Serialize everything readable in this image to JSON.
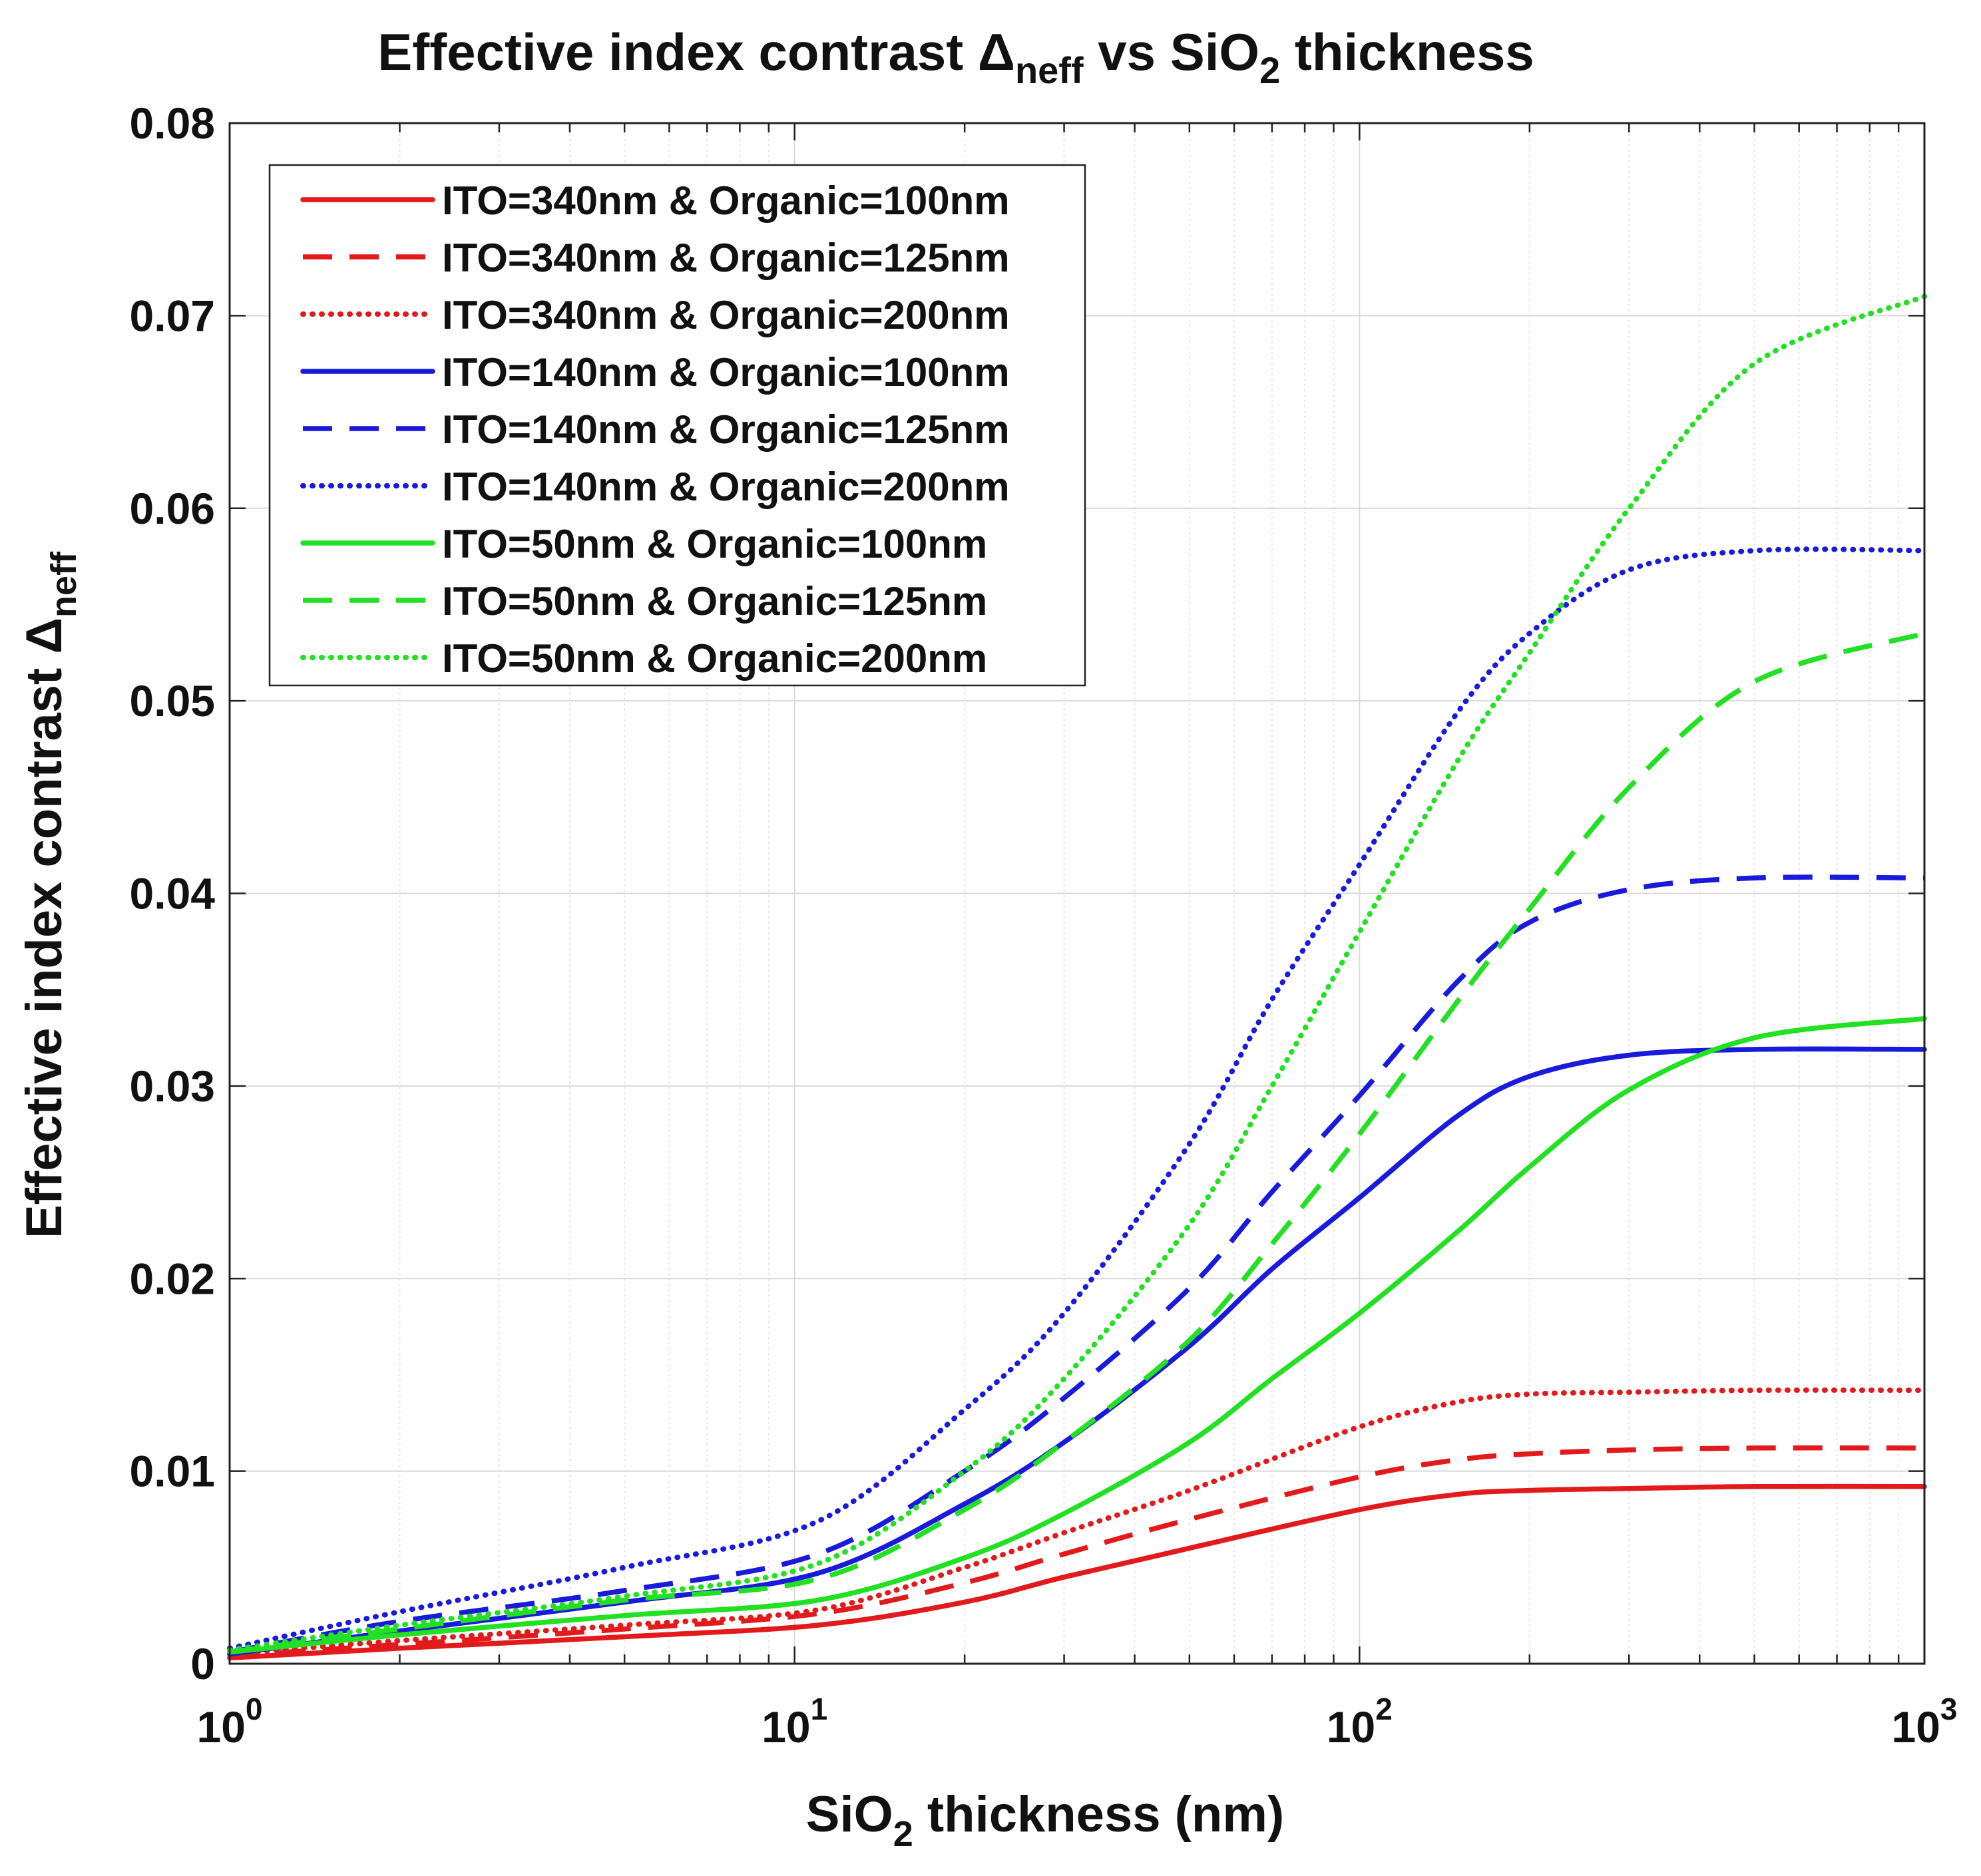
{
  "chart_data": {
    "type": "line",
    "title": {
      "main": "Effective index contrast Δ",
      "sub": "neff",
      "mid": " vs SiO",
      "sub2": "2",
      "end": " thickness"
    },
    "xlabel": {
      "pre": "SiO",
      "sub": "2",
      "post": " thickness (nm)"
    },
    "ylabel": {
      "main": "Effective index contrast Δ",
      "sub": "neff"
    },
    "xscale": "log",
    "xlim": [
      1,
      1000
    ],
    "ylim": [
      0,
      0.08
    ],
    "grid": true,
    "legend_position": "top-left",
    "xticks": [
      {
        "value": 1,
        "base": "10",
        "exp": "0"
      },
      {
        "value": 10,
        "base": "10",
        "exp": "1"
      },
      {
        "value": 100,
        "base": "10",
        "exp": "2"
      },
      {
        "value": 1000,
        "base": "10",
        "exp": "3"
      }
    ],
    "yticks": [
      {
        "value": 0,
        "label": "0"
      },
      {
        "value": 0.01,
        "label": "0.01"
      },
      {
        "value": 0.02,
        "label": "0.02"
      },
      {
        "value": 0.03,
        "label": "0.03"
      },
      {
        "value": 0.04,
        "label": "0.04"
      },
      {
        "value": 0.05,
        "label": "0.05"
      },
      {
        "value": 0.06,
        "label": "0.06"
      },
      {
        "value": 0.07,
        "label": "0.07"
      },
      {
        "value": 0.08,
        "label": "0.08"
      }
    ],
    "series": [
      {
        "name": "ITO=340nm & Organic=100nm",
        "color": "#e31a1c",
        "style": "solid",
        "x": [
          1,
          2,
          5,
          11,
          20,
          30,
          50,
          100,
          150,
          200,
          300,
          500,
          1000
        ],
        "y": [
          0.0003,
          0.0008,
          0.0014,
          0.002,
          0.0032,
          0.0045,
          0.006,
          0.008,
          0.0088,
          0.009,
          0.0091,
          0.0092,
          0.0092
        ]
      },
      {
        "name": "ITO=340nm & Organic=125nm",
        "color": "#e31a1c",
        "style": "dashed",
        "x": [
          1,
          2,
          5,
          11,
          20,
          30,
          50,
          100,
          150,
          200,
          300,
          500,
          1000
        ],
        "y": [
          0.0004,
          0.001,
          0.0018,
          0.0026,
          0.0042,
          0.0057,
          0.0075,
          0.0097,
          0.0106,
          0.0109,
          0.0111,
          0.0112,
          0.0112
        ]
      },
      {
        "name": "ITO=340nm & Organic=200nm",
        "color": "#e31a1c",
        "style": "dotted",
        "x": [
          1,
          2,
          5,
          11,
          20,
          30,
          50,
          100,
          150,
          200,
          300,
          500,
          1000
        ],
        "y": [
          0.0005,
          0.0012,
          0.002,
          0.0028,
          0.005,
          0.0068,
          0.009,
          0.0123,
          0.0136,
          0.014,
          0.0141,
          0.0142,
          0.0142
        ]
      },
      {
        "name": "ITO=140nm & Organic=100nm",
        "color": "#1a1adc",
        "style": "solid",
        "x": [
          1,
          2,
          5,
          11,
          20,
          30,
          50,
          70,
          100,
          150,
          200,
          300,
          500,
          1000
        ],
        "y": [
          0.0005,
          0.0017,
          0.0032,
          0.0047,
          0.0083,
          0.0115,
          0.0165,
          0.0205,
          0.0242,
          0.0285,
          0.0305,
          0.0316,
          0.0319,
          0.0319
        ]
      },
      {
        "name": "ITO=140nm & Organic=125nm",
        "color": "#1a1adc",
        "style": "dashed",
        "x": [
          1,
          2,
          5,
          11,
          20,
          30,
          50,
          70,
          100,
          150,
          200,
          300,
          500,
          1000
        ],
        "y": [
          0.0006,
          0.0022,
          0.0038,
          0.0057,
          0.01,
          0.0138,
          0.0195,
          0.0245,
          0.0295,
          0.0355,
          0.0385,
          0.0402,
          0.0408,
          0.0408
        ]
      },
      {
        "name": "ITO=140nm & Organic=200nm",
        "color": "#1a1adc",
        "style": "dotted",
        "x": [
          1,
          2,
          5,
          11,
          20,
          30,
          50,
          70,
          100,
          150,
          200,
          300,
          500,
          1000
        ],
        "y": [
          0.0008,
          0.0027,
          0.005,
          0.0074,
          0.0132,
          0.0182,
          0.027,
          0.0345,
          0.0415,
          0.0495,
          0.0535,
          0.0568,
          0.0578,
          0.0578
        ]
      },
      {
        "name": "ITO=50nm & Organic=100nm",
        "color": "#22e022",
        "style": "solid",
        "x": [
          1,
          2,
          5,
          11,
          20,
          30,
          50,
          70,
          100,
          150,
          200,
          300,
          500,
          1000
        ],
        "y": [
          0.0006,
          0.0015,
          0.0025,
          0.0033,
          0.0055,
          0.0078,
          0.0115,
          0.0148,
          0.0182,
          0.0225,
          0.0258,
          0.0298,
          0.0325,
          0.0335
        ]
      },
      {
        "name": "ITO=50nm & Organic=125nm",
        "color": "#22e022",
        "style": "dashed",
        "x": [
          1,
          2,
          5,
          11,
          20,
          30,
          50,
          70,
          100,
          150,
          200,
          300,
          500,
          1000
        ],
        "y": [
          0.0006,
          0.0018,
          0.0033,
          0.0044,
          0.008,
          0.0115,
          0.0168,
          0.0218,
          0.0275,
          0.0345,
          0.0392,
          0.0455,
          0.051,
          0.0535
        ]
      },
      {
        "name": "ITO=50nm & Organic=200nm",
        "color": "#22e022",
        "style": "dotted",
        "x": [
          1,
          2,
          5,
          11,
          20,
          30,
          50,
          70,
          100,
          150,
          200,
          300,
          500,
          1000
        ],
        "y": [
          0.0007,
          0.002,
          0.0035,
          0.0052,
          0.01,
          0.0148,
          0.0228,
          0.03,
          0.038,
          0.047,
          0.0525,
          0.06,
          0.0675,
          0.071
        ]
      }
    ]
  }
}
